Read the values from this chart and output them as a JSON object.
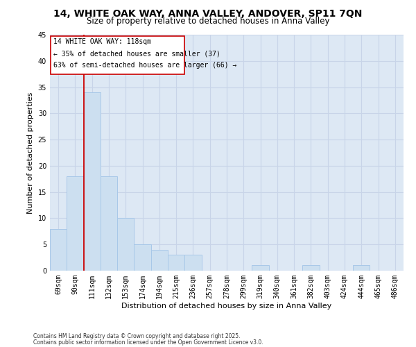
{
  "title": "14, WHITE OAK WAY, ANNA VALLEY, ANDOVER, SP11 7QN",
  "subtitle": "Size of property relative to detached houses in Anna Valley",
  "xlabel": "Distribution of detached houses by size in Anna Valley",
  "ylabel": "Number of detached properties",
  "bar_color": "#ccdff0",
  "bar_edge_color": "#a8c8e8",
  "categories": [
    "69sqm",
    "90sqm",
    "111sqm",
    "132sqm",
    "153sqm",
    "174sqm",
    "194sqm",
    "215sqm",
    "236sqm",
    "257sqm",
    "278sqm",
    "299sqm",
    "319sqm",
    "340sqm",
    "361sqm",
    "382sqm",
    "403sqm",
    "424sqm",
    "444sqm",
    "465sqm",
    "486sqm"
  ],
  "values": [
    8,
    18,
    34,
    18,
    10,
    5,
    4,
    3,
    3,
    0,
    0,
    0,
    1,
    0,
    0,
    1,
    0,
    0,
    1,
    0,
    0
  ],
  "ylim": [
    0,
    45
  ],
  "yticks": [
    0,
    5,
    10,
    15,
    20,
    25,
    30,
    35,
    40,
    45
  ],
  "property_line_label": "14 WHITE OAK WAY: 118sqm",
  "annotation_line1": "← 35% of detached houses are smaller (37)",
  "annotation_line2": "63% of semi-detached houses are larger (66) →",
  "footnote1": "Contains HM Land Registry data © Crown copyright and database right 2025.",
  "footnote2": "Contains public sector information licensed under the Open Government Licence v3.0.",
  "grid_color": "#c8d4e8",
  "background_color": "#dde8f4",
  "title_fontsize": 10,
  "subtitle_fontsize": 8.5,
  "axis_label_fontsize": 8,
  "tick_fontsize": 7
}
